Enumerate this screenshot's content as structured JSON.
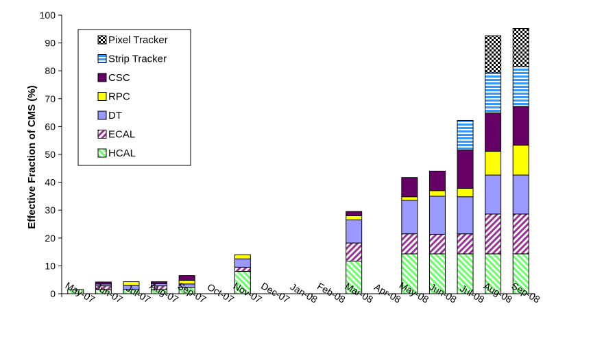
{
  "chart_data": {
    "type": "bar",
    "stacked": true,
    "ylabel": "Effective Fraction of CMS (%)",
    "xlabel": "",
    "ylim": [
      0,
      100
    ],
    "y_ticks": [
      "0",
      "10",
      "20",
      "30",
      "40",
      "50",
      "60",
      "70",
      "80",
      "90",
      "100"
    ],
    "grid": false,
    "legend_position": "top-left inside plot",
    "categories": [
      "May-07",
      "Jun-07",
      "Jul-07",
      "Aug-07",
      "Sep-07",
      "Oct-07",
      "Nov-07",
      "Dec-07",
      "Jan-08",
      "Feb-08",
      "Mar-08",
      "Apr-08",
      "May-08",
      "Jun-08",
      "Jul-08",
      "Aug-08",
      "Sep-08"
    ],
    "series": [
      {
        "name": "HCAL",
        "color": "#66ff66",
        "pattern": "diagonal-stripes-light",
        "values": [
          1.5,
          1.5,
          1.5,
          1.5,
          2.3,
          0,
          8.0,
          0,
          0,
          0,
          11.7,
          0,
          14.3,
          14.3,
          14.3,
          14.3,
          14.3
        ]
      },
      {
        "name": "ECAL",
        "color": "#993399",
        "pattern": "diagonal-stripes-dark",
        "values": [
          0,
          1.3,
          0,
          1.3,
          0,
          0,
          1.5,
          0,
          0,
          0,
          6.5,
          0,
          7.2,
          7.0,
          7.2,
          14.3,
          14.3
        ]
      },
      {
        "name": "DT",
        "color": "#9999ff",
        "pattern": "solid",
        "values": [
          0,
          0.7,
          1.5,
          0.8,
          1.2,
          0,
          3.0,
          0,
          0,
          0,
          8.3,
          0,
          12.0,
          13.7,
          13.3,
          14.0,
          14.0
        ]
      },
      {
        "name": "RPC",
        "color": "#ffff00",
        "pattern": "solid",
        "values": [
          0,
          0,
          1.3,
          0,
          1.3,
          0,
          1.5,
          0,
          0,
          0,
          1.5,
          0,
          1.3,
          2.0,
          3.0,
          8.5,
          10.7
        ]
      },
      {
        "name": "CSC",
        "color": "#660066",
        "pattern": "solid",
        "values": [
          0,
          0.7,
          0,
          0.7,
          1.7,
          0,
          0,
          0,
          0,
          0,
          1.5,
          0,
          6.9,
          7.0,
          13.7,
          13.8,
          13.9
        ]
      },
      {
        "name": "Strip Tracker",
        "color": "#3399ff",
        "pattern": "horizontal-stripes",
        "values": [
          0,
          0,
          0,
          0,
          0,
          0,
          0,
          0,
          0,
          0,
          0,
          0,
          0,
          0,
          10.7,
          14.4,
          14.3
        ]
      },
      {
        "name": "Pixel Tracker",
        "color": "#000000",
        "pattern": "checkerboard",
        "values": [
          0,
          0,
          0,
          0,
          0,
          0,
          0,
          0,
          0,
          0,
          0,
          0,
          0,
          0,
          0,
          13.3,
          13.7
        ]
      }
    ],
    "legend_order": [
      "Pixel Tracker",
      "Strip Tracker",
      "CSC",
      "RPC",
      "DT",
      "ECAL",
      "HCAL"
    ]
  }
}
